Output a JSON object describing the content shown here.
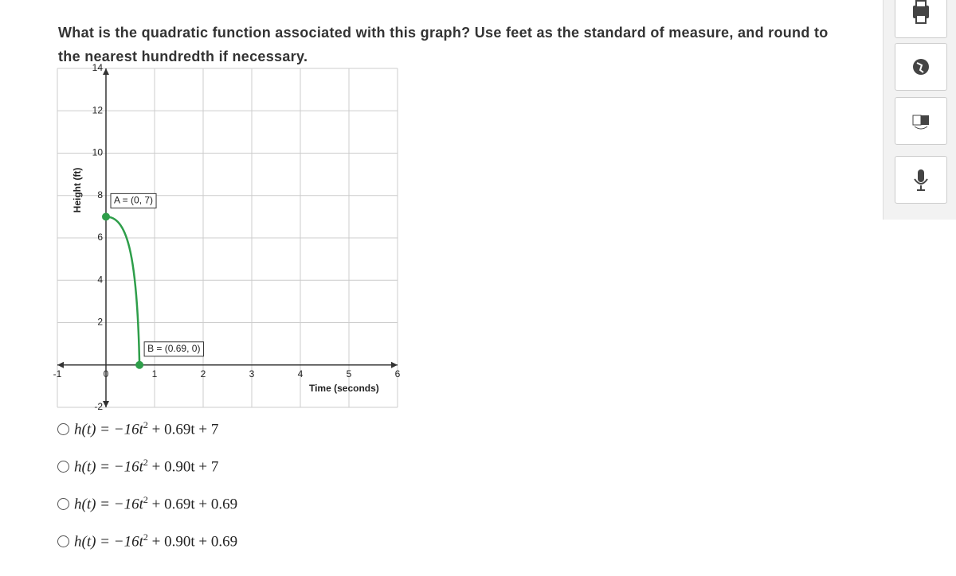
{
  "question": "What is the quadratic function associated with this graph? Use feet as the standard of measure, and round to the nearest hundredth if necessary.",
  "chart": {
    "type": "line",
    "y_label": "Height (ft)",
    "x_label": "Time (seconds)",
    "xlim": [
      -1,
      6
    ],
    "ylim": [
      -2,
      14
    ],
    "xticks": [
      -1,
      0,
      1,
      2,
      3,
      4,
      5,
      6
    ],
    "yticks": [
      -2,
      2,
      4,
      6,
      8,
      10,
      12,
      14
    ],
    "grid": true,
    "color": "#2e9e4a",
    "points": [
      {
        "label": "A = (0, 7)",
        "x": 0,
        "y": 7
      },
      {
        "label": "B = (0.69, 0)",
        "x": 0.69,
        "y": 0
      }
    ]
  },
  "options": [
    {
      "before": "h(t) = −16t",
      "exponent": "2",
      "after": " + 0.69t + 7"
    },
    {
      "before": "h(t) = −16t",
      "exponent": "2",
      "after": " + 0.90t + 7"
    },
    {
      "before": "h(t) = −16t",
      "exponent": "2",
      "after": " + 0.69t + 0.69"
    },
    {
      "before": "h(t) = −16t",
      "exponent": "2",
      "after": " + 0.90t + 0.69"
    }
  ]
}
